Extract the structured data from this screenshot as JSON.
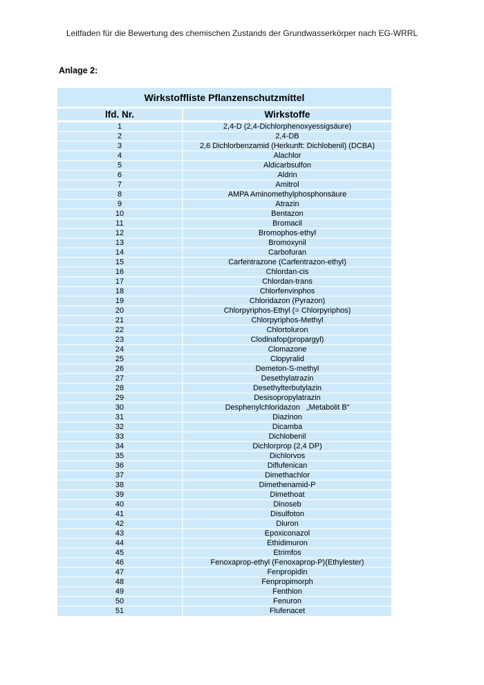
{
  "document": {
    "header": "Leitfaden für die Bewertung des chemischen Zustands der Grundwasserkörper nach EG-WRRL",
    "section_label": "Anlage 2:"
  },
  "table": {
    "title": "Wirkstoffliste Pflanzenschutzmittel",
    "columns": {
      "nr": "lfd. Nr.",
      "substance": "Wirkstoffe"
    },
    "rows": [
      {
        "nr": "1",
        "substance": "2,4-D (2,4-Dichlorphenoxyessigsäure)"
      },
      {
        "nr": "2",
        "substance": "2,4-DB"
      },
      {
        "nr": "3",
        "substance": "2,6 Dichlorbenzamid (Herkunft: Dichlobenil) (DCBA)"
      },
      {
        "nr": "4",
        "substance": "Alachlor"
      },
      {
        "nr": "5",
        "substance": "Aldicarbsulfon"
      },
      {
        "nr": "6",
        "substance": "Aldrin"
      },
      {
        "nr": "7",
        "substance": "Amitrol"
      },
      {
        "nr": "8",
        "substance": "AMPA Aminomethylphosphonsäure"
      },
      {
        "nr": "9",
        "substance": "Atrazin"
      },
      {
        "nr": "10",
        "substance": "Bentazon"
      },
      {
        "nr": "11",
        "substance": "Bromacil"
      },
      {
        "nr": "12",
        "substance": "Bromophos-ethyl"
      },
      {
        "nr": "13",
        "substance": "Bromoxynil"
      },
      {
        "nr": "14",
        "substance": "Carbofuran"
      },
      {
        "nr": "15",
        "substance": "Carfentrazone (Carfentrazon-ethyl)"
      },
      {
        "nr": "16",
        "substance": "Chlordan-cis"
      },
      {
        "nr": "17",
        "substance": "Chlordan-trans"
      },
      {
        "nr": "18",
        "substance": "Chlorfenvinphos"
      },
      {
        "nr": "19",
        "substance": "Chloridazon (Pyrazon)"
      },
      {
        "nr": "20",
        "substance": "Chlorpyriphos-Ethyl (= Chlorpyriphos)"
      },
      {
        "nr": "21",
        "substance": "Chlorpyriphos-Methyl"
      },
      {
        "nr": "22",
        "substance": "Chlortoluron"
      },
      {
        "nr": "23",
        "substance": "Clodinafop(propargyl)"
      },
      {
        "nr": "24",
        "substance": "Clomazone"
      },
      {
        "nr": "25",
        "substance": "Clopyralid"
      },
      {
        "nr": "26",
        "substance": "Demeton-S-methyl"
      },
      {
        "nr": "27",
        "substance": "Desethylatrazin"
      },
      {
        "nr": "28",
        "substance": "Desethylterbutylazin"
      },
      {
        "nr": "29",
        "substance": "Desisopropylatrazin"
      },
      {
        "nr": "30",
        "substance": "Desphenylchloridazon   „Metabolit B“"
      },
      {
        "nr": "31",
        "substance": "Diazinon"
      },
      {
        "nr": "32",
        "substance": "Dicamba"
      },
      {
        "nr": "33",
        "substance": "Dichlobenil"
      },
      {
        "nr": "34",
        "substance": "Dichlorprop (2,4 DP)"
      },
      {
        "nr": "35",
        "substance": "Dichlorvos"
      },
      {
        "nr": "36",
        "substance": "Diflufenican"
      },
      {
        "nr": "37",
        "substance": "Dimethachlor"
      },
      {
        "nr": "38",
        "substance": "Dimethenamid-P"
      },
      {
        "nr": "39",
        "substance": "Dimethoat"
      },
      {
        "nr": "40",
        "substance": "Dinoseb"
      },
      {
        "nr": "41",
        "substance": "Disulfoton"
      },
      {
        "nr": "42",
        "substance": "Diuron"
      },
      {
        "nr": "43",
        "substance": "Epoxiconazol"
      },
      {
        "nr": "44",
        "substance": "Ethidimuron"
      },
      {
        "nr": "45",
        "substance": "Etrimfos"
      },
      {
        "nr": "46",
        "substance": "Fenoxaprop-ethyl (Fenoxaprop-P)(Ethylester)"
      },
      {
        "nr": "47",
        "substance": "Fenpropidin"
      },
      {
        "nr": "48",
        "substance": "Fenpropimorph"
      },
      {
        "nr": "49",
        "substance": "Fenthion"
      },
      {
        "nr": "50",
        "substance": "Fenuron"
      },
      {
        "nr": "51",
        "substance": "Flufenacet"
      }
    ]
  },
  "colors": {
    "table_cell_bg": "#cde9fa",
    "row_separator": "#e9f5fd",
    "header_separator": "#fcfeff",
    "text": "#000000"
  }
}
